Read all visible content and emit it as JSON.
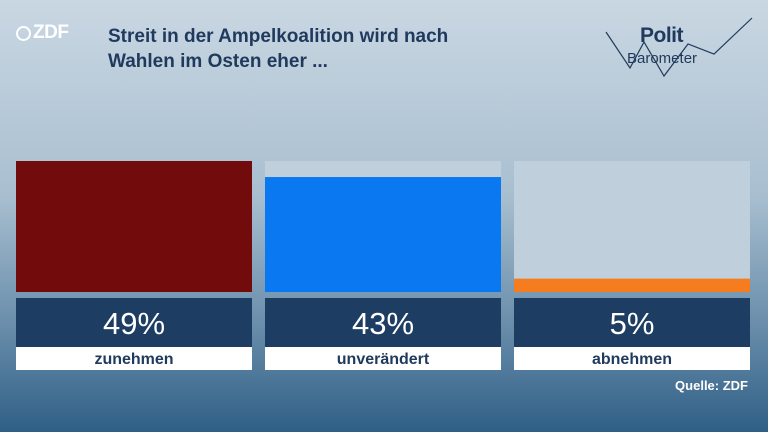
{
  "header": {
    "logo_text": "ZDF",
    "title_line1": "Streit in der Ampelkoalition wird nach",
    "title_line2": "Wahlen im Osten eher ...",
    "brand_polit": "Polit",
    "brand_barometer": "Barometer"
  },
  "footer": {
    "source": "Quelle: ZDF"
  },
  "chart_data": {
    "type": "bar",
    "categories": [
      "zunehmen",
      "unverändert",
      "abnehmen"
    ],
    "values": [
      49,
      43,
      5
    ],
    "value_labels": [
      "49%",
      "43%",
      "5%"
    ],
    "unit": "%",
    "ylim": [
      0,
      49
    ],
    "colors": [
      "#720c0c",
      "#0a78f0",
      "#f57c1f"
    ],
    "track_color": "#bfcfdc",
    "label_box_color": "#1e3d63",
    "category_strip_color": "#ffffff",
    "category_text_color": "#1f3a5c"
  }
}
